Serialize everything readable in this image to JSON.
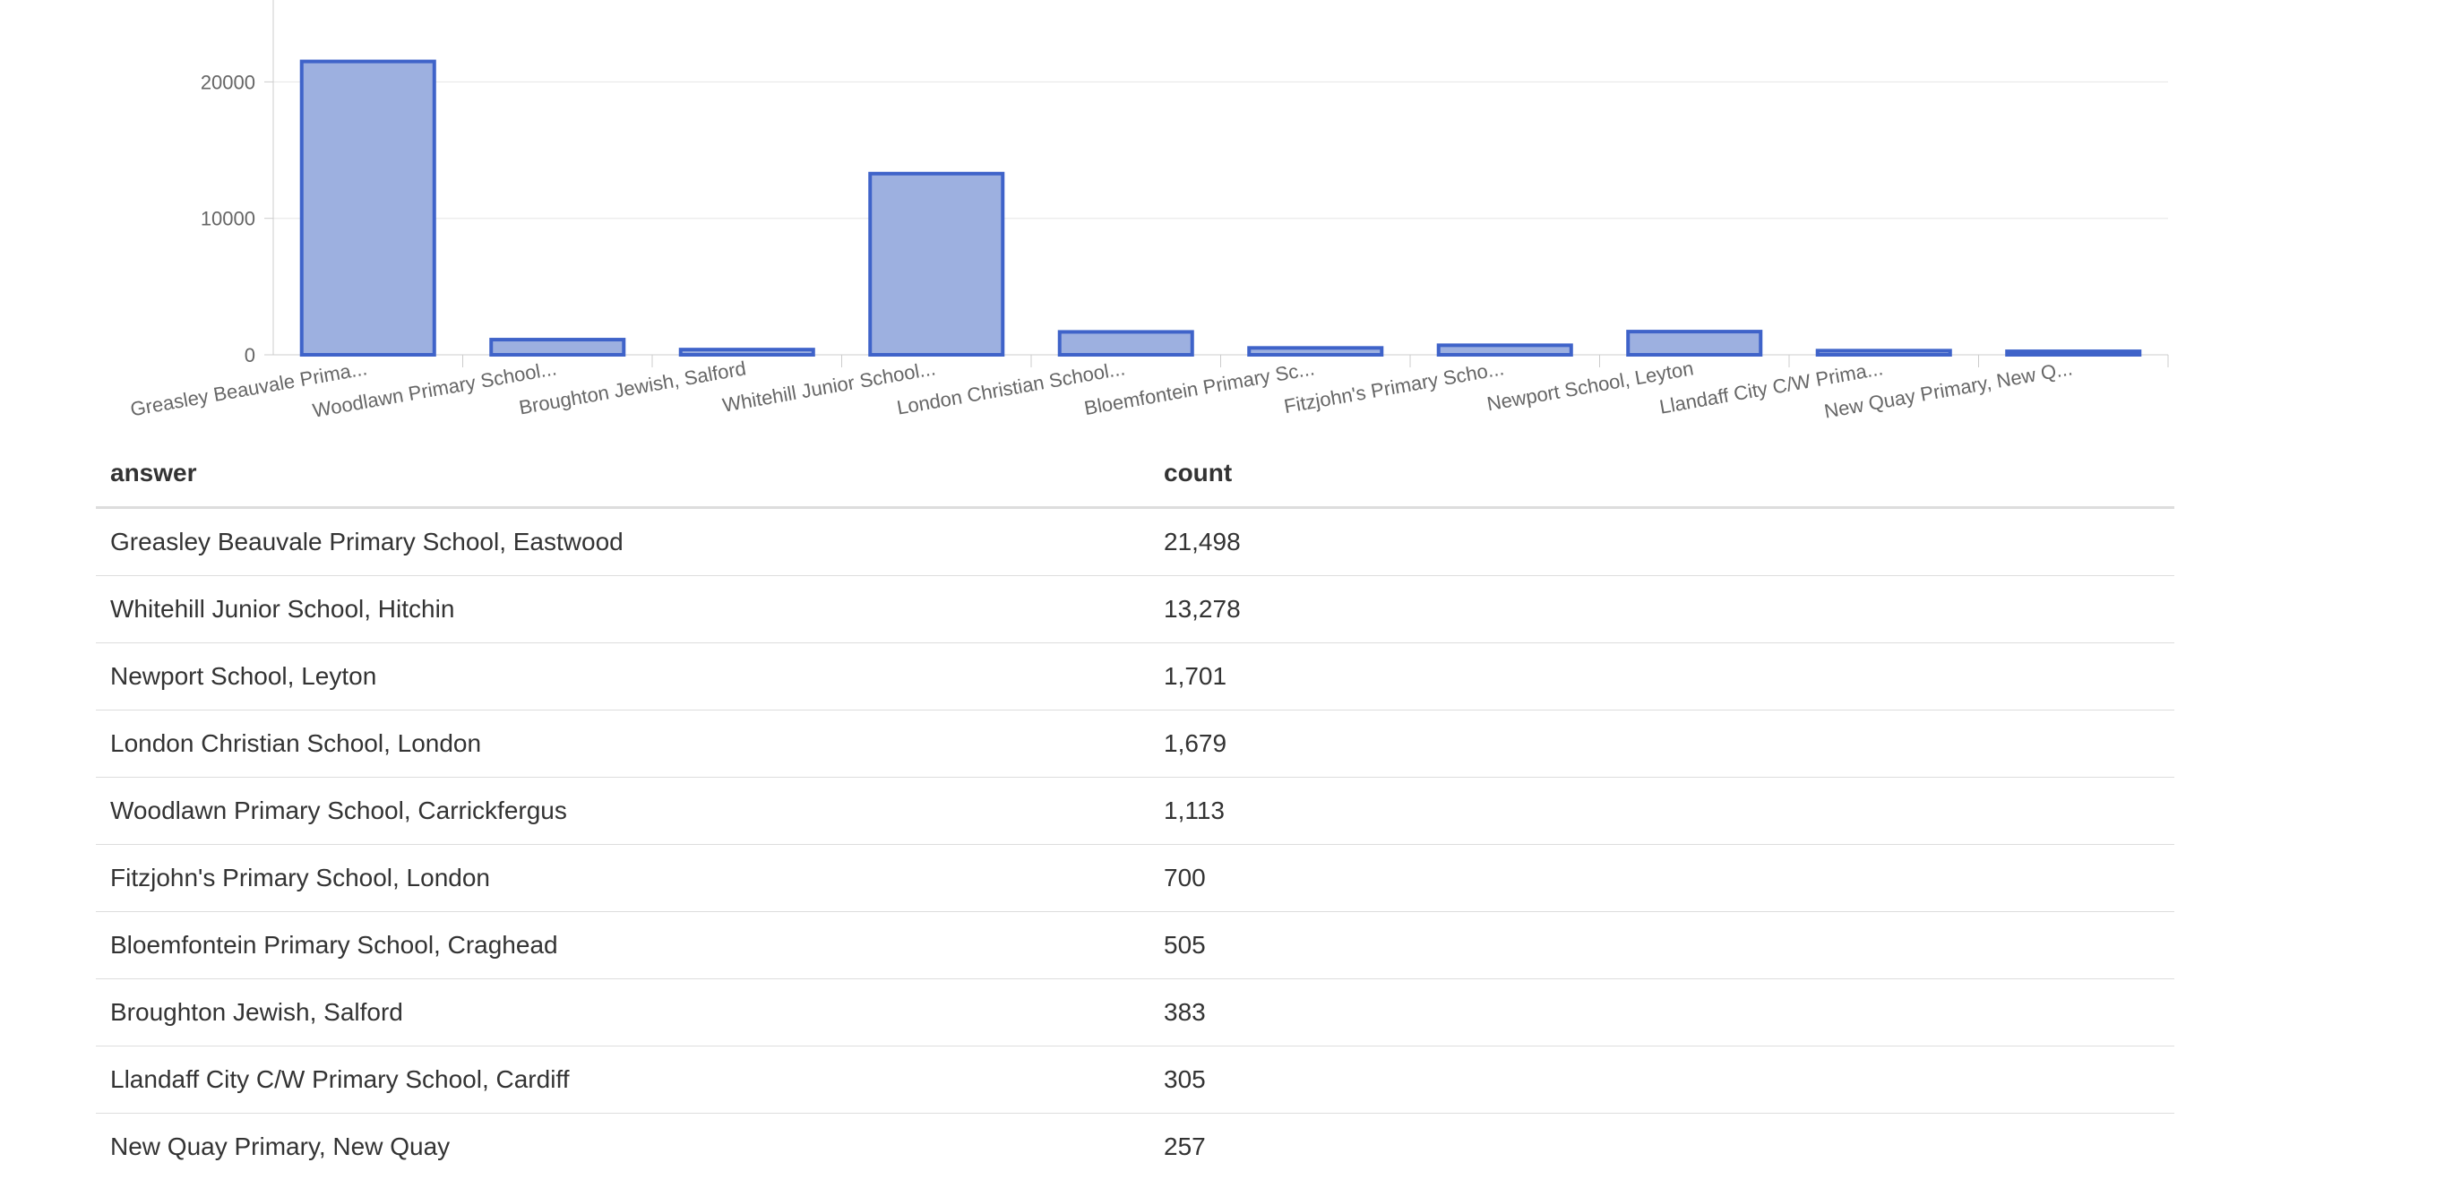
{
  "chart_data": {
    "type": "bar",
    "categories": [
      "Greasley Beauvale Prima...",
      "Woodlawn Primary School...",
      "Broughton Jewish, Salford",
      "Whitehill Junior School...",
      "London Christian School...",
      "Bloemfontein Primary Sc...",
      "Fitzjohn's Primary Scho...",
      "Newport School, Leyton",
      "Llandaff City C/W Prima...",
      "New Quay Primary, New Q..."
    ],
    "values": [
      21498,
      1113,
      383,
      13278,
      1679,
      505,
      700,
      1701,
      305,
      257
    ],
    "yticks": [
      0,
      10000,
      20000
    ],
    "ylim": [
      0,
      26000
    ],
    "grid": true,
    "colors": {
      "bar_fill": "#9db0e0",
      "bar_stroke": "#3f63c9",
      "grid": "#e6e6e6",
      "axis": "#cccccc"
    }
  },
  "table": {
    "headers": {
      "answer": "answer",
      "count": "count"
    },
    "rows": [
      {
        "answer": "Greasley Beauvale Primary School, Eastwood",
        "count": "21,498"
      },
      {
        "answer": "Whitehill Junior School, Hitchin",
        "count": "13,278"
      },
      {
        "answer": "Newport School, Leyton",
        "count": "1,701"
      },
      {
        "answer": "London Christian School, London",
        "count": "1,679"
      },
      {
        "answer": "Woodlawn Primary School, Carrickfergus",
        "count": "1,113"
      },
      {
        "answer": "Fitzjohn's Primary School, London",
        "count": "700"
      },
      {
        "answer": "Bloemfontein Primary School, Craghead",
        "count": "505"
      },
      {
        "answer": "Broughton Jewish, Salford",
        "count": "383"
      },
      {
        "answer": "Llandaff City C/W Primary School, Cardiff",
        "count": "305"
      },
      {
        "answer": "New Quay Primary, New Quay",
        "count": "257"
      }
    ]
  }
}
